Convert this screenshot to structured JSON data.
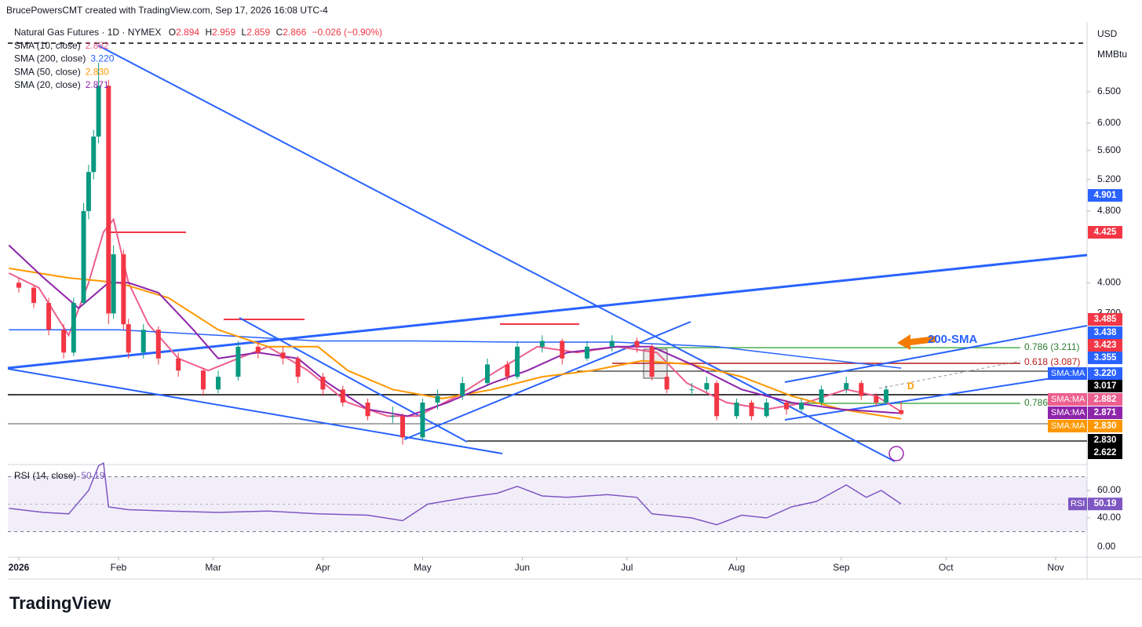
{
  "header": {
    "credit": "BrucePowersCMT created with TradingView.com, Sep 17, 2026 16:08 UTC-4",
    "ohlc_prefixes": [
      "O",
      "H",
      "L",
      "C"
    ],
    "change": "−0.026 (−0.90%)",
    "currency": "USD",
    "unit": "MMBtu",
    "logo": "TradingView",
    "lower_axis_label": "0.00"
  },
  "annotations": [
    "0.786 (3.211)",
    "0.618 (3.087)",
    "0.786",
    "200-SMA",
    "D"
  ],
  "chart_data": [
    {
      "type": "candlestick",
      "title": "Natural Gas Futures · 1D · NYMEX",
      "up_color": "#089981",
      "down_color": "#f23645",
      "log_scale": true,
      "grid": false,
      "x": [
        0,
        3,
        6,
        9,
        11,
        13,
        14,
        15,
        16,
        18,
        19,
        21,
        22,
        25,
        28,
        32,
        37,
        40,
        44,
        48,
        53,
        56,
        61,
        65,
        70,
        75,
        77,
        81,
        84,
        89,
        94,
        98,
        100,
        105,
        109,
        114,
        119,
        124,
        127,
        130,
        135,
        138,
        140,
        144,
        147,
        150,
        154,
        157,
        161,
        166,
        169,
        172,
        174,
        177
      ],
      "open": [
        4,
        3.95,
        3.8,
        3.55,
        3.35,
        3.8,
        4.8,
        5.3,
        5.8,
        6.6,
        3.7,
        4.3,
        3.6,
        3.35,
        3.55,
        3.3,
        3.2,
        3.05,
        3.15,
        3.4,
        3.35,
        3.3,
        3.15,
        3.05,
        2.95,
        2.85,
        2.85,
        2.7,
        2.95,
        3,
        3.1,
        3.25,
        3.15,
        3.4,
        3.45,
        3.3,
        3.4,
        3.45,
        3.4,
        3.15,
        3.05,
        3.05,
        3.1,
        2.85,
        2.95,
        2.85,
        2.95,
        2.9,
        2.95,
        3.05,
        3.1,
        3,
        2.95,
        2.894
      ],
      "high": [
        4.05,
        3.98,
        3.85,
        3.6,
        3.85,
        4.9,
        5.4,
        5.9,
        7,
        6.7,
        4.4,
        4.35,
        3.65,
        3.6,
        3.58,
        3.35,
        3.22,
        3.2,
        3.45,
        3.45,
        3.4,
        3.32,
        3.18,
        3.08,
        2.98,
        2.92,
        2.87,
        2.98,
        3.05,
        3.15,
        3.3,
        3.28,
        3.45,
        3.5,
        3.47,
        3.45,
        3.5,
        3.48,
        3.42,
        3.18,
        3.1,
        3.15,
        3.12,
        2.98,
        2.97,
        2.98,
        2.97,
        2.98,
        3.08,
        3.15,
        3.12,
        3.02,
        3.08,
        2.959
      ],
      "low": [
        3.9,
        3.75,
        3.5,
        3.3,
        3.32,
        3.78,
        4.7,
        5.2,
        5.7,
        3.6,
        3.65,
        3.55,
        3.3,
        3.3,
        3.25,
        3.15,
        3,
        3.02,
        3.12,
        3.3,
        3.25,
        3.1,
        3,
        2.92,
        2.82,
        2.8,
        2.65,
        2.68,
        2.9,
        2.97,
        3.08,
        3.12,
        3.13,
        3.35,
        3.25,
        3.28,
        3.36,
        3.35,
        3.12,
        3.02,
        3,
        3.03,
        2.82,
        2.83,
        2.82,
        2.84,
        2.86,
        2.88,
        2.93,
        3.02,
        2.97,
        2.92,
        2.94,
        2.859
      ],
      "close": [
        3.95,
        3.8,
        3.55,
        3.35,
        3.8,
        4.8,
        5.3,
        5.8,
        6.6,
        3.7,
        4.3,
        3.6,
        3.35,
        3.55,
        3.3,
        3.2,
        3.05,
        3.15,
        3.4,
        3.35,
        3.3,
        3.15,
        3.05,
        2.95,
        2.85,
        2.85,
        2.7,
        2.95,
        3,
        3.1,
        3.25,
        3.15,
        3.4,
        3.45,
        3.3,
        3.4,
        3.45,
        3.4,
        3.15,
        3.05,
        3.05,
        3.1,
        2.85,
        2.95,
        2.85,
        2.95,
        2.9,
        2.95,
        3.05,
        3.1,
        3,
        2.95,
        3.05,
        2.866
      ],
      "series": [
        {
          "name": "SMA (10, close)",
          "color": "#ec5f8e",
          "x": [
            -2,
            4,
            10,
            14,
            17,
            19,
            22,
            26,
            32,
            38,
            44,
            50,
            58,
            66,
            74,
            80,
            88,
            96,
            104,
            112,
            120,
            128,
            134,
            142,
            150,
            158,
            166,
            172,
            177
          ],
          "values": [
            4.1,
            3.95,
            3.5,
            4,
            4.55,
            4.7,
            4,
            3.6,
            3.3,
            3.2,
            3.3,
            3.4,
            3.2,
            2.95,
            2.85,
            2.85,
            3,
            3.2,
            3.4,
            3.35,
            3.4,
            3.35,
            3.1,
            2.95,
            2.9,
            2.95,
            3.05,
            3,
            2.882
          ]
        },
        {
          "name": "SMA (200, close)",
          "color": "#2962ff",
          "x": [
            -2,
            20,
            40,
            60,
            80,
            100,
            120,
            140,
            160,
            177
          ],
          "values": [
            3.55,
            3.55,
            3.5,
            3.45,
            3.45,
            3.44,
            3.44,
            3.4,
            3.3,
            3.22
          ],
          "value_label": "3.220"
        },
        {
          "name": "SMA (50, close)",
          "color": "#ff9800",
          "x": [
            -2,
            10,
            20,
            30,
            40,
            50,
            60,
            66,
            75,
            85,
            95,
            105,
            115,
            125,
            135,
            145,
            155,
            165,
            177
          ],
          "values": [
            4.15,
            4.05,
            4,
            3.85,
            3.55,
            3.4,
            3.4,
            3.2,
            3.05,
            2.98,
            3.05,
            3.15,
            3.2,
            3.28,
            3.25,
            3.15,
            3,
            2.9,
            2.83
          ],
          "value_label": "2.830"
        },
        {
          "name": "SMA (20, close)",
          "color": "#8e24aa",
          "x": [
            -2,
            5,
            12,
            18,
            22,
            28,
            35,
            40,
            48,
            56,
            62,
            70,
            78,
            86,
            95,
            102,
            110,
            120,
            127,
            135,
            145,
            155,
            165,
            177
          ],
          "values": [
            4.4,
            4.05,
            3.75,
            4,
            4,
            3.9,
            3.55,
            3.3,
            3.35,
            3.3,
            3.1,
            2.9,
            2.85,
            2.95,
            3.1,
            3.2,
            3.35,
            3.4,
            3.4,
            3.25,
            3.05,
            2.95,
            2.9,
            2.871
          ]
        }
      ],
      "xlim": [
        -2.2,
        214.3
      ],
      "xticks": [
        {
          "value": 0,
          "label": "2026"
        },
        {
          "value": 20,
          "label": "Feb"
        },
        {
          "value": 39,
          "label": "Mar"
        },
        {
          "value": 61,
          "label": "Apr"
        },
        {
          "value": 81,
          "label": "May"
        },
        {
          "value": 101,
          "label": "Jun"
        },
        {
          "value": 122,
          "label": "Jul"
        },
        {
          "value": 144,
          "label": "Aug"
        },
        {
          "value": 165,
          "label": "Sep"
        },
        {
          "value": 186,
          "label": "Oct"
        },
        {
          "value": 208,
          "label": "Nov"
        }
      ],
      "ylim": [
        2.52,
        7.73
      ],
      "yticks": [
        {
          "value": 3.7,
          "label": "3.700"
        },
        {
          "value": 4,
          "label": "4.000"
        },
        {
          "value": 4.8,
          "label": "4.800"
        },
        {
          "value": 5.2,
          "label": "5.200"
        },
        {
          "value": 5.6,
          "label": "5.600"
        },
        {
          "value": 6,
          "label": "6.000"
        },
        {
          "value": 6.5,
          "label": "6.500"
        }
      ],
      "price_labels": [
        {
          "value": 4.901,
          "color": "#2962ff"
        },
        {
          "value": 4.425,
          "color": "#f23645"
        },
        {
          "value": 3.485,
          "color": "#f23645"
        },
        {
          "value": 3.438,
          "color": "#2962ff"
        },
        {
          "value": 3.423,
          "color": "#f23645"
        },
        {
          "value": 3.355,
          "color": "#2962ff"
        },
        {
          "value": 3.22,
          "label": "3.220",
          "color": "#2962ff",
          "tag": "SMA:MA"
        },
        {
          "value": 3.017,
          "color": "#000000"
        },
        {
          "value": 2.882,
          "color": "#ec5f8e",
          "tag": "SMA:MA"
        },
        {
          "value": 2.871,
          "color": "#8e24aa",
          "tag": "SMA:MA"
        },
        {
          "value": 2.83,
          "label": "2.830",
          "color": "#ff9800",
          "tag": "SMA:MA"
        },
        {
          "value": 2.83,
          "label": "2.830",
          "color": "#000000"
        },
        {
          "value": 2.622,
          "color": "#000000"
        }
      ]
    },
    {
      "type": "line",
      "title": "RSI (14, close)",
      "tag": "RSI",
      "series": [
        {
          "name": "RSI",
          "color": "#7e57c2",
          "x": [
            -2,
            5,
            10,
            14,
            16,
            17,
            18,
            22,
            30,
            40,
            50,
            60,
            70,
            77,
            82,
            90,
            96,
            100,
            105,
            110,
            118,
            124,
            127,
            135,
            140,
            145,
            150,
            155,
            160,
            166,
            170,
            173,
            177
          ],
          "values": [
            47,
            44,
            43,
            60,
            78,
            80,
            48,
            46,
            45,
            44,
            45,
            43,
            42,
            38,
            50,
            55,
            58,
            63,
            56,
            55,
            57,
            55,
            43,
            40,
            35,
            42,
            40,
            48,
            52,
            64,
            55,
            60,
            50.19
          ]
        }
      ],
      "band": [
        30,
        70
      ],
      "xlim": [
        -2.2,
        214.3
      ],
      "ylim": [
        25.7,
        78.9
      ],
      "yticks": [
        {
          "value": 40,
          "label": "40.00"
        },
        {
          "value": 60,
          "label": "60.00"
        }
      ]
    }
  ]
}
